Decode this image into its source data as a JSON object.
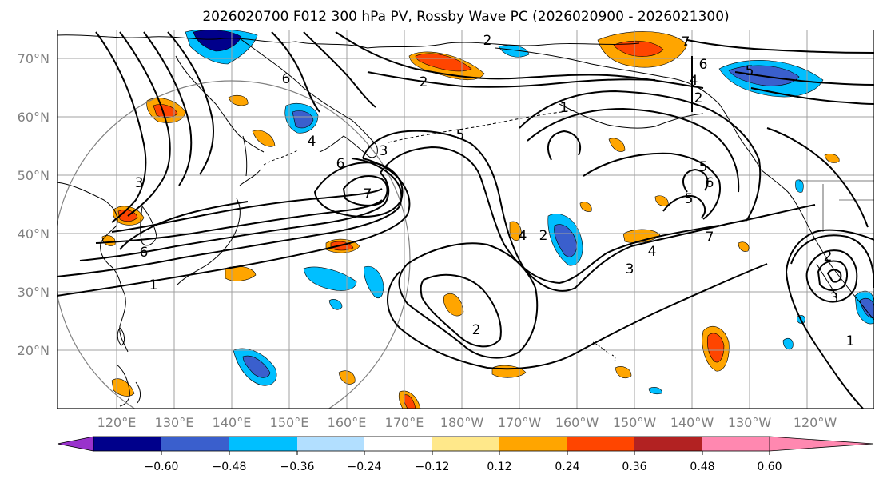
{
  "title": "2026020700 F012 300 hPa PV, Rossby Wave PC (2026020900 - 2026021300)",
  "lat_labels": [
    "70°N",
    "60°N",
    "50°N",
    "40°N",
    "30°N",
    "20°N"
  ],
  "lon_labels": [
    "120°E",
    "130°E",
    "140°E",
    "150°E",
    "160°E",
    "170°E",
    "180°W",
    "170°W",
    "160°W",
    "150°W",
    "140°W",
    "130°W",
    "120°W"
  ],
  "colorbar": {
    "colors": [
      "#9932cc",
      "#00008b",
      "#3a5fcd",
      "#00bfff",
      "#b2dfff",
      "#ffffff",
      "#ffe88a",
      "#ffa500",
      "#ff4500",
      "#b22222",
      "#ff88b0"
    ],
    "ticks": [
      "−0.60",
      "−0.48",
      "−0.36",
      "−0.24",
      "−0.12",
      "0.12",
      "0.24",
      "0.36",
      "0.48",
      "0.60"
    ]
  },
  "contour_labels": [
    "1",
    "2",
    "3",
    "4",
    "5",
    "6",
    "7"
  ],
  "colors": {
    "grid": "#a0a0a0",
    "coast": "#000000",
    "positive_strong": "#ff4500",
    "positive": "#ffa500",
    "positive_weak": "#ffe88a",
    "negative": "#00bfff",
    "negative_strong": "#3a5fcd",
    "negative_max": "#00008b"
  }
}
